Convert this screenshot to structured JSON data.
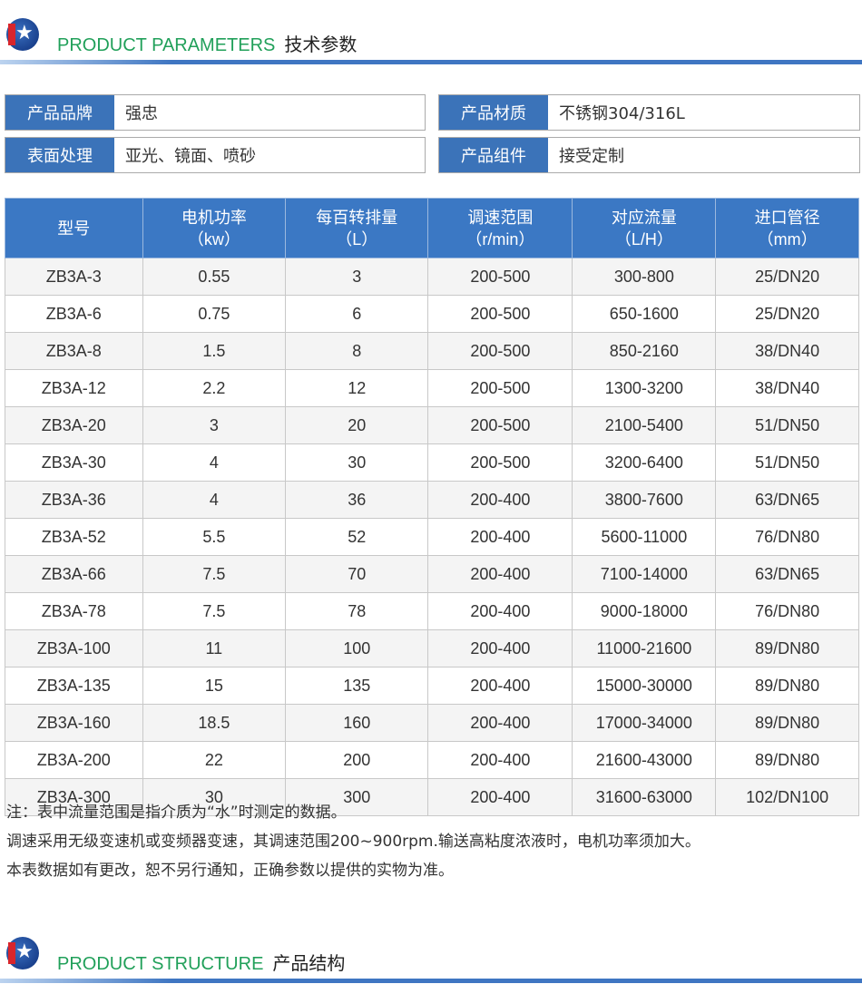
{
  "section1": {
    "title_en": "PRODUCT PARAMETERS",
    "title_cn": "技术参数"
  },
  "section2": {
    "title_en": "PRODUCT STRUCTURE",
    "title_cn": "产品结构"
  },
  "info": [
    {
      "label": "产品品牌",
      "value": "强忠"
    },
    {
      "label": "产品材质",
      "value": "不锈钢304/316L"
    },
    {
      "label": "表面处理",
      "value": "亚光、镜面、喷砂"
    },
    {
      "label": "产品组件",
      "value": "接受定制"
    }
  ],
  "table": {
    "headers": [
      [
        "型号",
        ""
      ],
      [
        "电机功率",
        "（kw）"
      ],
      [
        "每百转排量",
        "（L）"
      ],
      [
        "调速范围",
        "（r/min）"
      ],
      [
        "对应流量",
        "（L/H）"
      ],
      [
        "进口管径",
        "（mm）"
      ]
    ],
    "rows": [
      [
        "ZB3A-3",
        "0.55",
        "3",
        "200-500",
        "300-800",
        "25/DN20"
      ],
      [
        "ZB3A-6",
        "0.75",
        "6",
        "200-500",
        "650-1600",
        "25/DN20"
      ],
      [
        "ZB3A-8",
        "1.5",
        "8",
        "200-500",
        "850-2160",
        "38/DN40"
      ],
      [
        "ZB3A-12",
        "2.2",
        "12",
        "200-500",
        "1300-3200",
        "38/DN40"
      ],
      [
        "ZB3A-20",
        "3",
        "20",
        "200-500",
        "2100-5400",
        "51/DN50"
      ],
      [
        "ZB3A-30",
        "4",
        "30",
        "200-500",
        "3200-6400",
        "51/DN50"
      ],
      [
        "ZB3A-36",
        "4",
        "36",
        "200-400",
        "3800-7600",
        "63/DN65"
      ],
      [
        "ZB3A-52",
        "5.5",
        "52",
        "200-400",
        "5600-11000",
        "76/DN80"
      ],
      [
        "ZB3A-66",
        "7.5",
        "70",
        "200-400",
        "7100-14000",
        "63/DN65"
      ],
      [
        "ZB3A-78",
        "7.5",
        "78",
        "200-400",
        "9000-18000",
        "76/DN80"
      ],
      [
        "ZB3A-100",
        "11",
        "100",
        "200-400",
        "11000-21600",
        "89/DN80"
      ],
      [
        "ZB3A-135",
        "15",
        "135",
        "200-400",
        "15000-30000",
        "89/DN80"
      ],
      [
        "ZB3A-160",
        "18.5",
        "160",
        "200-400",
        "17000-34000",
        "89/DN80"
      ],
      [
        "ZB3A-200",
        "22",
        "200",
        "200-400",
        "21600-43000",
        "89/DN80"
      ],
      [
        "ZB3A-300",
        "30",
        "300",
        "200-400",
        "31600-63000",
        "102/DN100"
      ]
    ]
  },
  "notes": [
    "注：表中流量范围是指介质为“水”时测定的数据。",
    "调速采用无级变速机或变频器变速，其调速范围200~900rpm.输送高粘度浓液时，电机功率须加大。",
    "本表数据如有更改，恕不另行通知，正确参数以提供的实物为准。"
  ]
}
